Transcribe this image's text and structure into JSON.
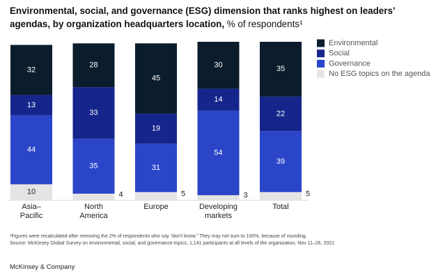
{
  "chart_data": {
    "type": "stacked-bar",
    "title": "Environmental, social, and governance (ESG) dimension that ranks highest on leaders’ agendas, by organization headquarters location,",
    "subtitle": "% of respondents¹",
    "categories": [
      "Asia–\nPacific",
      "North\nAmerica",
      "Europe",
      "Developing\nmarkets",
      "Total"
    ],
    "series": [
      {
        "name": "Environmental",
        "color": "#0b1d2d",
        "values": [
          32,
          28,
          45,
          30,
          35
        ]
      },
      {
        "name": "Social",
        "color": "#15258c",
        "values": [
          13,
          33,
          19,
          14,
          22
        ]
      },
      {
        "name": "Governance",
        "color": "#2b45c9",
        "values": [
          44,
          35,
          31,
          54,
          39
        ]
      },
      {
        "name": "No ESG topics on the agenda",
        "color": "#e4e4e4",
        "values": [
          10,
          4,
          5,
          3,
          5
        ]
      }
    ],
    "footnote": "¹Figures were recalculated after removing the 2% of respondents who say “don’t know.” They may not sum to 100%, because of rounding.",
    "source": "Source: McKinsey Global Survey on environmental, social, and governance topics, 1,141 participants at all levels of the organization, Nov 11–26, 2021",
    "brand": "McKinsey & Company"
  }
}
